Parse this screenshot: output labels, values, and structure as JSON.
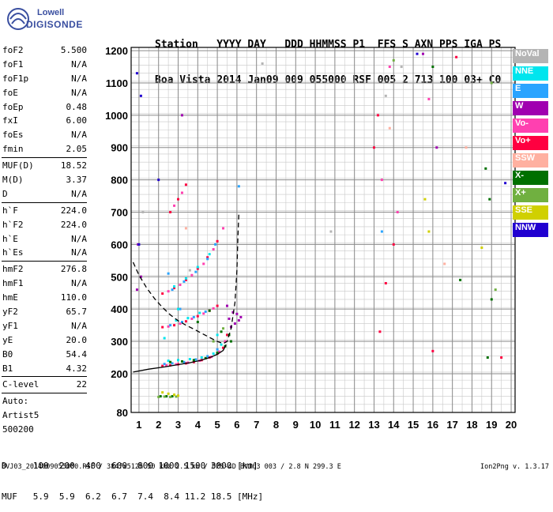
{
  "logo": {
    "line1": "Lowell",
    "line2": "DIGISONDE"
  },
  "header": {
    "row1": "Station   YYYY DAY   DDD HHMMSS P1  FFS S AXN PPS IGA PS",
    "row2": "Boa Vista 2014 Jan09 009 055000 RSF 005 2 713 100 03+ C0"
  },
  "params": [
    [
      {
        "k": "foF2",
        "v": "5.500"
      },
      {
        "k": "foF1",
        "v": "N/A"
      },
      {
        "k": "foF1p",
        "v": "N/A"
      },
      {
        "k": "foE",
        "v": "N/A"
      },
      {
        "k": "foEp",
        "v": "0.48"
      },
      {
        "k": "fxI",
        "v": "6.00"
      },
      {
        "k": "foEs",
        "v": "N/A"
      },
      {
        "k": "fmin",
        "v": "2.05"
      }
    ],
    [
      {
        "k": "MUF(D)",
        "v": "18.52"
      },
      {
        "k": "M(D)",
        "v": "3.37"
      },
      {
        "k": "D",
        "v": "N/A"
      }
    ],
    [
      {
        "k": "h`F",
        "v": "224.0"
      },
      {
        "k": "h`F2",
        "v": "224.0"
      },
      {
        "k": "h`E",
        "v": "N/A"
      },
      {
        "k": "h`Es",
        "v": "N/A"
      }
    ],
    [
      {
        "k": "hmF2",
        "v": "276.8"
      },
      {
        "k": "hmF1",
        "v": "N/A"
      },
      {
        "k": "hmE",
        "v": "110.0"
      },
      {
        "k": "yF2",
        "v": "65.7"
      },
      {
        "k": "yF1",
        "v": "N/A"
      },
      {
        "k": "yE",
        "v": "20.0"
      },
      {
        "k": "B0",
        "v": "54.4"
      },
      {
        "k": "B1",
        "v": "4.32"
      }
    ],
    [
      {
        "k": "C-level",
        "v": "22"
      }
    ],
    [
      {
        "k": "Auto:",
        "v": ""
      },
      {
        "k": "Artist5",
        "v": ""
      },
      {
        "k": "500200",
        "v": ""
      }
    ]
  ],
  "legend": [
    {
      "label": "NoVal",
      "color": "#b4b4b4"
    },
    {
      "label": "NNE",
      "color": "#00e5ee"
    },
    {
      "label": "E",
      "color": "#2aa4ff"
    },
    {
      "label": "W",
      "color": "#a000b0"
    },
    {
      "label": "Vo-",
      "color": "#ff40b0"
    },
    {
      "label": "Vo+",
      "color": "#ff0040"
    },
    {
      "label": "SSW",
      "color": "#ffb0a0"
    },
    {
      "label": "X-",
      "color": "#007000"
    },
    {
      "label": "X+",
      "color": "#70b040"
    },
    {
      "label": "SSE",
      "color": "#d0d000"
    },
    {
      "label": "NNW",
      "color": "#2000d0"
    }
  ],
  "muf_table": {
    "row1": "D     100  200  400  600  800 1000 1500 3000 [km]",
    "row2": "MUF   5.9  5.9  6.2  6.7  7.4  8.4 11.2 18.5 [MHz]"
  },
  "footer": {
    "left": "BVJ03_2014009055000.RSF / 384fx512h 50 kHz 2.5 km / DPS-4D BVJ03 003 / 2.8 N 299.3 E",
    "right": "Ion2Png v. 1.3.17"
  },
  "chart_data": {
    "type": "scatter",
    "title": "",
    "xlabel": "",
    "ylabel": "",
    "xlim": [
      0.6,
      20.2
    ],
    "ylim": [
      80,
      1210
    ],
    "x_ticks": [
      1,
      2,
      3,
      4,
      5,
      6,
      7,
      8,
      9,
      10,
      11,
      12,
      13,
      14,
      15,
      16,
      17,
      18,
      19,
      20
    ],
    "y_ticks": [
      80,
      200,
      300,
      400,
      500,
      600,
      700,
      800,
      900,
      1000,
      1100,
      1200
    ],
    "grid": true,
    "series": [
      {
        "color": "#ff0040",
        "points": [
          [
            2.2,
            224
          ],
          [
            2.6,
            226
          ],
          [
            3.0,
            229
          ],
          [
            3.4,
            232
          ],
          [
            3.8,
            236
          ],
          [
            4.2,
            242
          ],
          [
            4.6,
            250
          ],
          [
            5.0,
            262
          ],
          [
            5.3,
            280
          ],
          [
            5.5,
            320
          ],
          [
            2.2,
            344
          ],
          [
            2.8,
            350
          ],
          [
            3.4,
            362
          ],
          [
            4.0,
            378
          ],
          [
            4.6,
            395
          ],
          [
            5.0,
            410
          ],
          [
            2.2,
            448
          ],
          [
            2.8,
            465
          ],
          [
            3.4,
            490
          ],
          [
            4.0,
            525
          ],
          [
            4.5,
            560
          ],
          [
            5.0,
            610
          ],
          [
            2.6,
            700
          ],
          [
            3.0,
            740
          ],
          [
            3.4,
            785
          ],
          [
            13.0,
            900
          ],
          [
            13.2,
            1000
          ],
          [
            13.6,
            480
          ],
          [
            14.0,
            600
          ],
          [
            13.3,
            330
          ],
          [
            16.0,
            270
          ],
          [
            17.2,
            1180
          ],
          [
            19.5,
            250
          ]
        ]
      },
      {
        "color": "#ff40b0",
        "points": [
          [
            2.4,
            226
          ],
          [
            2.9,
            229
          ],
          [
            3.5,
            234
          ],
          [
            4.1,
            240
          ],
          [
            4.7,
            252
          ],
          [
            5.1,
            268
          ],
          [
            5.4,
            300
          ],
          [
            2.5,
            346
          ],
          [
            3.1,
            355
          ],
          [
            3.7,
            370
          ],
          [
            4.3,
            386
          ],
          [
            4.8,
            402
          ],
          [
            2.5,
            455
          ],
          [
            3.1,
            475
          ],
          [
            3.7,
            505
          ],
          [
            4.3,
            540
          ],
          [
            4.8,
            585
          ],
          [
            5.3,
            650
          ],
          [
            2.8,
            720
          ],
          [
            3.2,
            760
          ],
          [
            13.4,
            800
          ],
          [
            14.2,
            700
          ],
          [
            13.8,
            1150
          ],
          [
            15.8,
            1050
          ]
        ]
      },
      {
        "color": "#a000b0",
        "points": [
          [
            5.6,
            370
          ],
          [
            5.8,
            390
          ],
          [
            5.9,
            355
          ],
          [
            6.0,
            385
          ],
          [
            6.1,
            365
          ],
          [
            6.2,
            375
          ],
          [
            5.7,
            345
          ],
          [
            5.5,
            410
          ],
          [
            0.9,
            460
          ],
          [
            1.1,
            500
          ],
          [
            0.95,
            600
          ],
          [
            3.2,
            1000
          ],
          [
            15.5,
            1190
          ],
          [
            16.2,
            900
          ]
        ]
      },
      {
        "color": "#2aa4ff",
        "points": [
          [
            2.3,
            230
          ],
          [
            2.7,
            232
          ],
          [
            3.3,
            236
          ],
          [
            3.9,
            244
          ],
          [
            4.5,
            254
          ],
          [
            5.0,
            275
          ],
          [
            2.6,
            350
          ],
          [
            3.2,
            360
          ],
          [
            3.8,
            375
          ],
          [
            4.4,
            392
          ],
          [
            2.7,
            460
          ],
          [
            3.3,
            485
          ],
          [
            3.9,
            515
          ],
          [
            4.5,
            555
          ],
          [
            4.9,
            600
          ],
          [
            2.5,
            510
          ],
          [
            3.1,
            400
          ],
          [
            6.1,
            780
          ],
          [
            13.4,
            640
          ]
        ]
      },
      {
        "color": "#00e5ee",
        "points": [
          [
            2.5,
            240
          ],
          [
            3.0,
            242
          ],
          [
            3.6,
            245
          ],
          [
            4.2,
            250
          ],
          [
            4.8,
            262
          ],
          [
            5.2,
            290
          ],
          [
            2.9,
            365
          ],
          [
            3.5,
            372
          ],
          [
            4.1,
            388
          ],
          [
            2.8,
            470
          ],
          [
            3.4,
            495
          ],
          [
            4.0,
            530
          ],
          [
            4.6,
            570
          ],
          [
            3.0,
            400
          ],
          [
            2.3,
            310
          ],
          [
            5.0,
            320
          ]
        ]
      },
      {
        "color": "#007000",
        "points": [
          [
            2.6,
            236
          ],
          [
            3.2,
            238
          ],
          [
            3.8,
            242
          ],
          [
            4.4,
            248
          ],
          [
            5.0,
            265
          ],
          [
            5.4,
            285
          ],
          [
            5.6,
            320
          ],
          [
            5.7,
            300
          ],
          [
            4.0,
            360
          ],
          [
            4.6,
            395
          ],
          [
            5.2,
            330
          ],
          [
            2.1,
            130
          ],
          [
            2.4,
            130
          ],
          [
            2.7,
            130
          ],
          [
            17.4,
            490
          ],
          [
            18.8,
            250
          ],
          [
            19.0,
            430
          ],
          [
            18.7,
            835
          ],
          [
            18.9,
            740
          ],
          [
            16.0,
            1150
          ]
        ]
      },
      {
        "color": "#70b040",
        "points": [
          [
            2.0,
            128
          ],
          [
            2.3,
            129
          ],
          [
            2.6,
            128
          ],
          [
            2.9,
            129
          ],
          [
            4.8,
            300
          ],
          [
            5.3,
            340
          ],
          [
            19.2,
            460
          ],
          [
            19.0,
            1100
          ],
          [
            14.0,
            1170
          ]
        ]
      },
      {
        "color": "#d0d000",
        "points": [
          [
            2.2,
            142
          ],
          [
            2.5,
            138
          ],
          [
            2.8,
            135
          ],
          [
            3.0,
            132
          ],
          [
            15.6,
            740
          ],
          [
            15.8,
            640
          ],
          [
            18.5,
            590
          ]
        ]
      },
      {
        "color": "#2000d0",
        "points": [
          [
            1.0,
            600
          ],
          [
            2.0,
            800
          ],
          [
            15.2,
            1190
          ],
          [
            19.7,
            790
          ],
          [
            0.9,
            1130
          ],
          [
            1.1,
            1060
          ]
        ]
      },
      {
        "color": "#b4b4b4",
        "points": [
          [
            1.2,
            700
          ],
          [
            3.6,
            520
          ],
          [
            7.3,
            1160
          ],
          [
            13.6,
            1060
          ],
          [
            14.4,
            1150
          ],
          [
            10.8,
            640
          ]
        ]
      },
      {
        "color": "#ffb0a0",
        "points": [
          [
            3.4,
            650
          ],
          [
            13.8,
            960
          ],
          [
            16.6,
            540
          ],
          [
            17.7,
            900
          ]
        ]
      }
    ],
    "curves": [
      {
        "name": "",
        "style": "solid",
        "points": [
          [
            0.7,
            205
          ],
          [
            1.5,
            214
          ],
          [
            2.3,
            221
          ],
          [
            3.0,
            228
          ],
          [
            3.6,
            234
          ],
          [
            4.2,
            242
          ],
          [
            4.7,
            252
          ],
          [
            5.0,
            260
          ],
          [
            5.3,
            272
          ],
          [
            5.45,
            290
          ]
        ]
      },
      {
        "name": "",
        "style": "dashed",
        "points": [
          [
            0.7,
            545
          ],
          [
            1.0,
            505
          ],
          [
            1.4,
            465
          ],
          [
            1.8,
            432
          ],
          [
            2.2,
            405
          ],
          [
            2.6,
            382
          ],
          [
            3.0,
            364
          ],
          [
            3.4,
            350
          ],
          [
            3.8,
            338
          ],
          [
            4.2,
            325
          ],
          [
            4.6,
            312
          ],
          [
            5.0,
            300
          ],
          [
            5.3,
            293
          ],
          [
            5.5,
            300
          ],
          [
            5.7,
            340
          ],
          [
            5.9,
            420
          ],
          [
            6.0,
            520
          ],
          [
            6.05,
            620
          ],
          [
            6.1,
            700
          ]
        ]
      }
    ]
  }
}
